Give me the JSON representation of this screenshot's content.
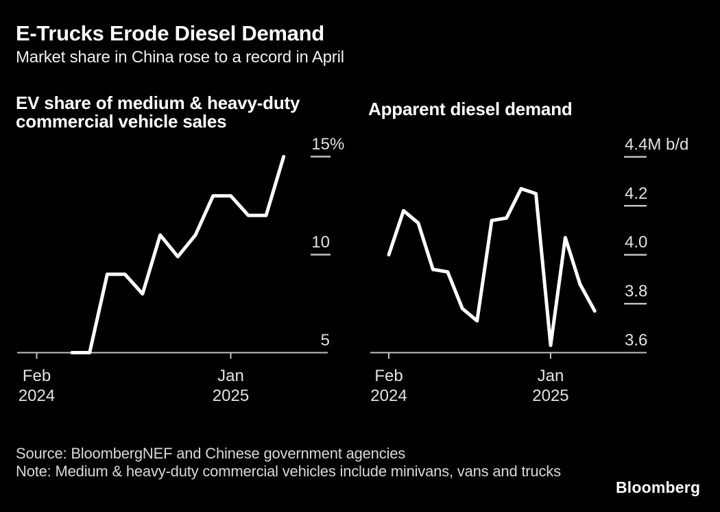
{
  "header": {
    "title": "E-Trucks Erode Diesel Demand",
    "subtitle": "Market share in China rose to a record in April"
  },
  "footer": {
    "source": "Source: BloombergNEF and Chinese government agencies",
    "note": "Note: Medium & heavy-duty commercial vehicles include minivans, vans and trucks",
    "brand": "Bloomberg"
  },
  "colors": {
    "background": "#000000",
    "data_line": "#ffffff",
    "axis": "#c2c2c2",
    "tick_label": "#e2e2e2"
  },
  "chart_data": [
    {
      "type": "line",
      "title": "EV share of medium & heavy-duty commercial vehicle sales",
      "unit": "%",
      "legend": "none",
      "grid": false,
      "x": [
        "Feb 2024",
        "Mar 2024",
        "Apr 2024",
        "May 2024",
        "Jun 2024",
        "Jul 2024",
        "Aug 2024",
        "Sep 2024",
        "Oct 2024",
        "Nov 2024",
        "Dec 2024",
        "Jan 2025",
        "Feb 2025",
        "Mar 2025",
        "Apr 2025"
      ],
      "values": [
        null,
        null,
        5.0,
        5.0,
        9.0,
        9.0,
        8.0,
        11.0,
        9.9,
        11.0,
        13.0,
        13.0,
        12.0,
        12.0,
        15.0
      ],
      "ylim": [
        5,
        15.2
      ],
      "yticks": [
        {
          "value": 15,
          "label": "15",
          "suffix": "%"
        },
        {
          "value": 10,
          "label": "10",
          "suffix": ""
        },
        {
          "value": 5,
          "label": "5",
          "suffix": ""
        }
      ],
      "xticks": [
        {
          "month_index": 0,
          "line1": "Feb",
          "line2": "2024"
        },
        {
          "month_index": 11,
          "line1": "Jan",
          "line2": "2025"
        }
      ]
    },
    {
      "type": "line",
      "title": "Apparent diesel demand",
      "unit": "M b/d",
      "legend": "none",
      "grid": false,
      "x": [
        "Feb 2024",
        "Mar 2024",
        "Apr 2024",
        "May 2024",
        "Jun 2024",
        "Jul 2024",
        "Aug 2024",
        "Sep 2024",
        "Oct 2024",
        "Nov 2024",
        "Dec 2024",
        "Jan 2025",
        "Feb 2025",
        "Mar 2025",
        "Apr 2025"
      ],
      "values": [
        4.0,
        4.18,
        4.13,
        3.94,
        3.93,
        3.78,
        3.73,
        4.14,
        4.15,
        4.27,
        4.25,
        3.63,
        4.07,
        3.88,
        3.77
      ],
      "ylim": [
        3.6,
        4.45
      ],
      "yticks": [
        {
          "value": 4.4,
          "label": "4.4",
          "suffix": "M b/d"
        },
        {
          "value": 4.2,
          "label": "4.2",
          "suffix": ""
        },
        {
          "value": 4.0,
          "label": "4.0",
          "suffix": ""
        },
        {
          "value": 3.8,
          "label": "3.8",
          "suffix": ""
        },
        {
          "value": 3.6,
          "label": "3.6",
          "suffix": ""
        }
      ],
      "xticks": [
        {
          "month_index": 0,
          "line1": "Feb",
          "line2": "2024"
        },
        {
          "month_index": 11,
          "line1": "Jan",
          "line2": "2025"
        }
      ]
    }
  ]
}
